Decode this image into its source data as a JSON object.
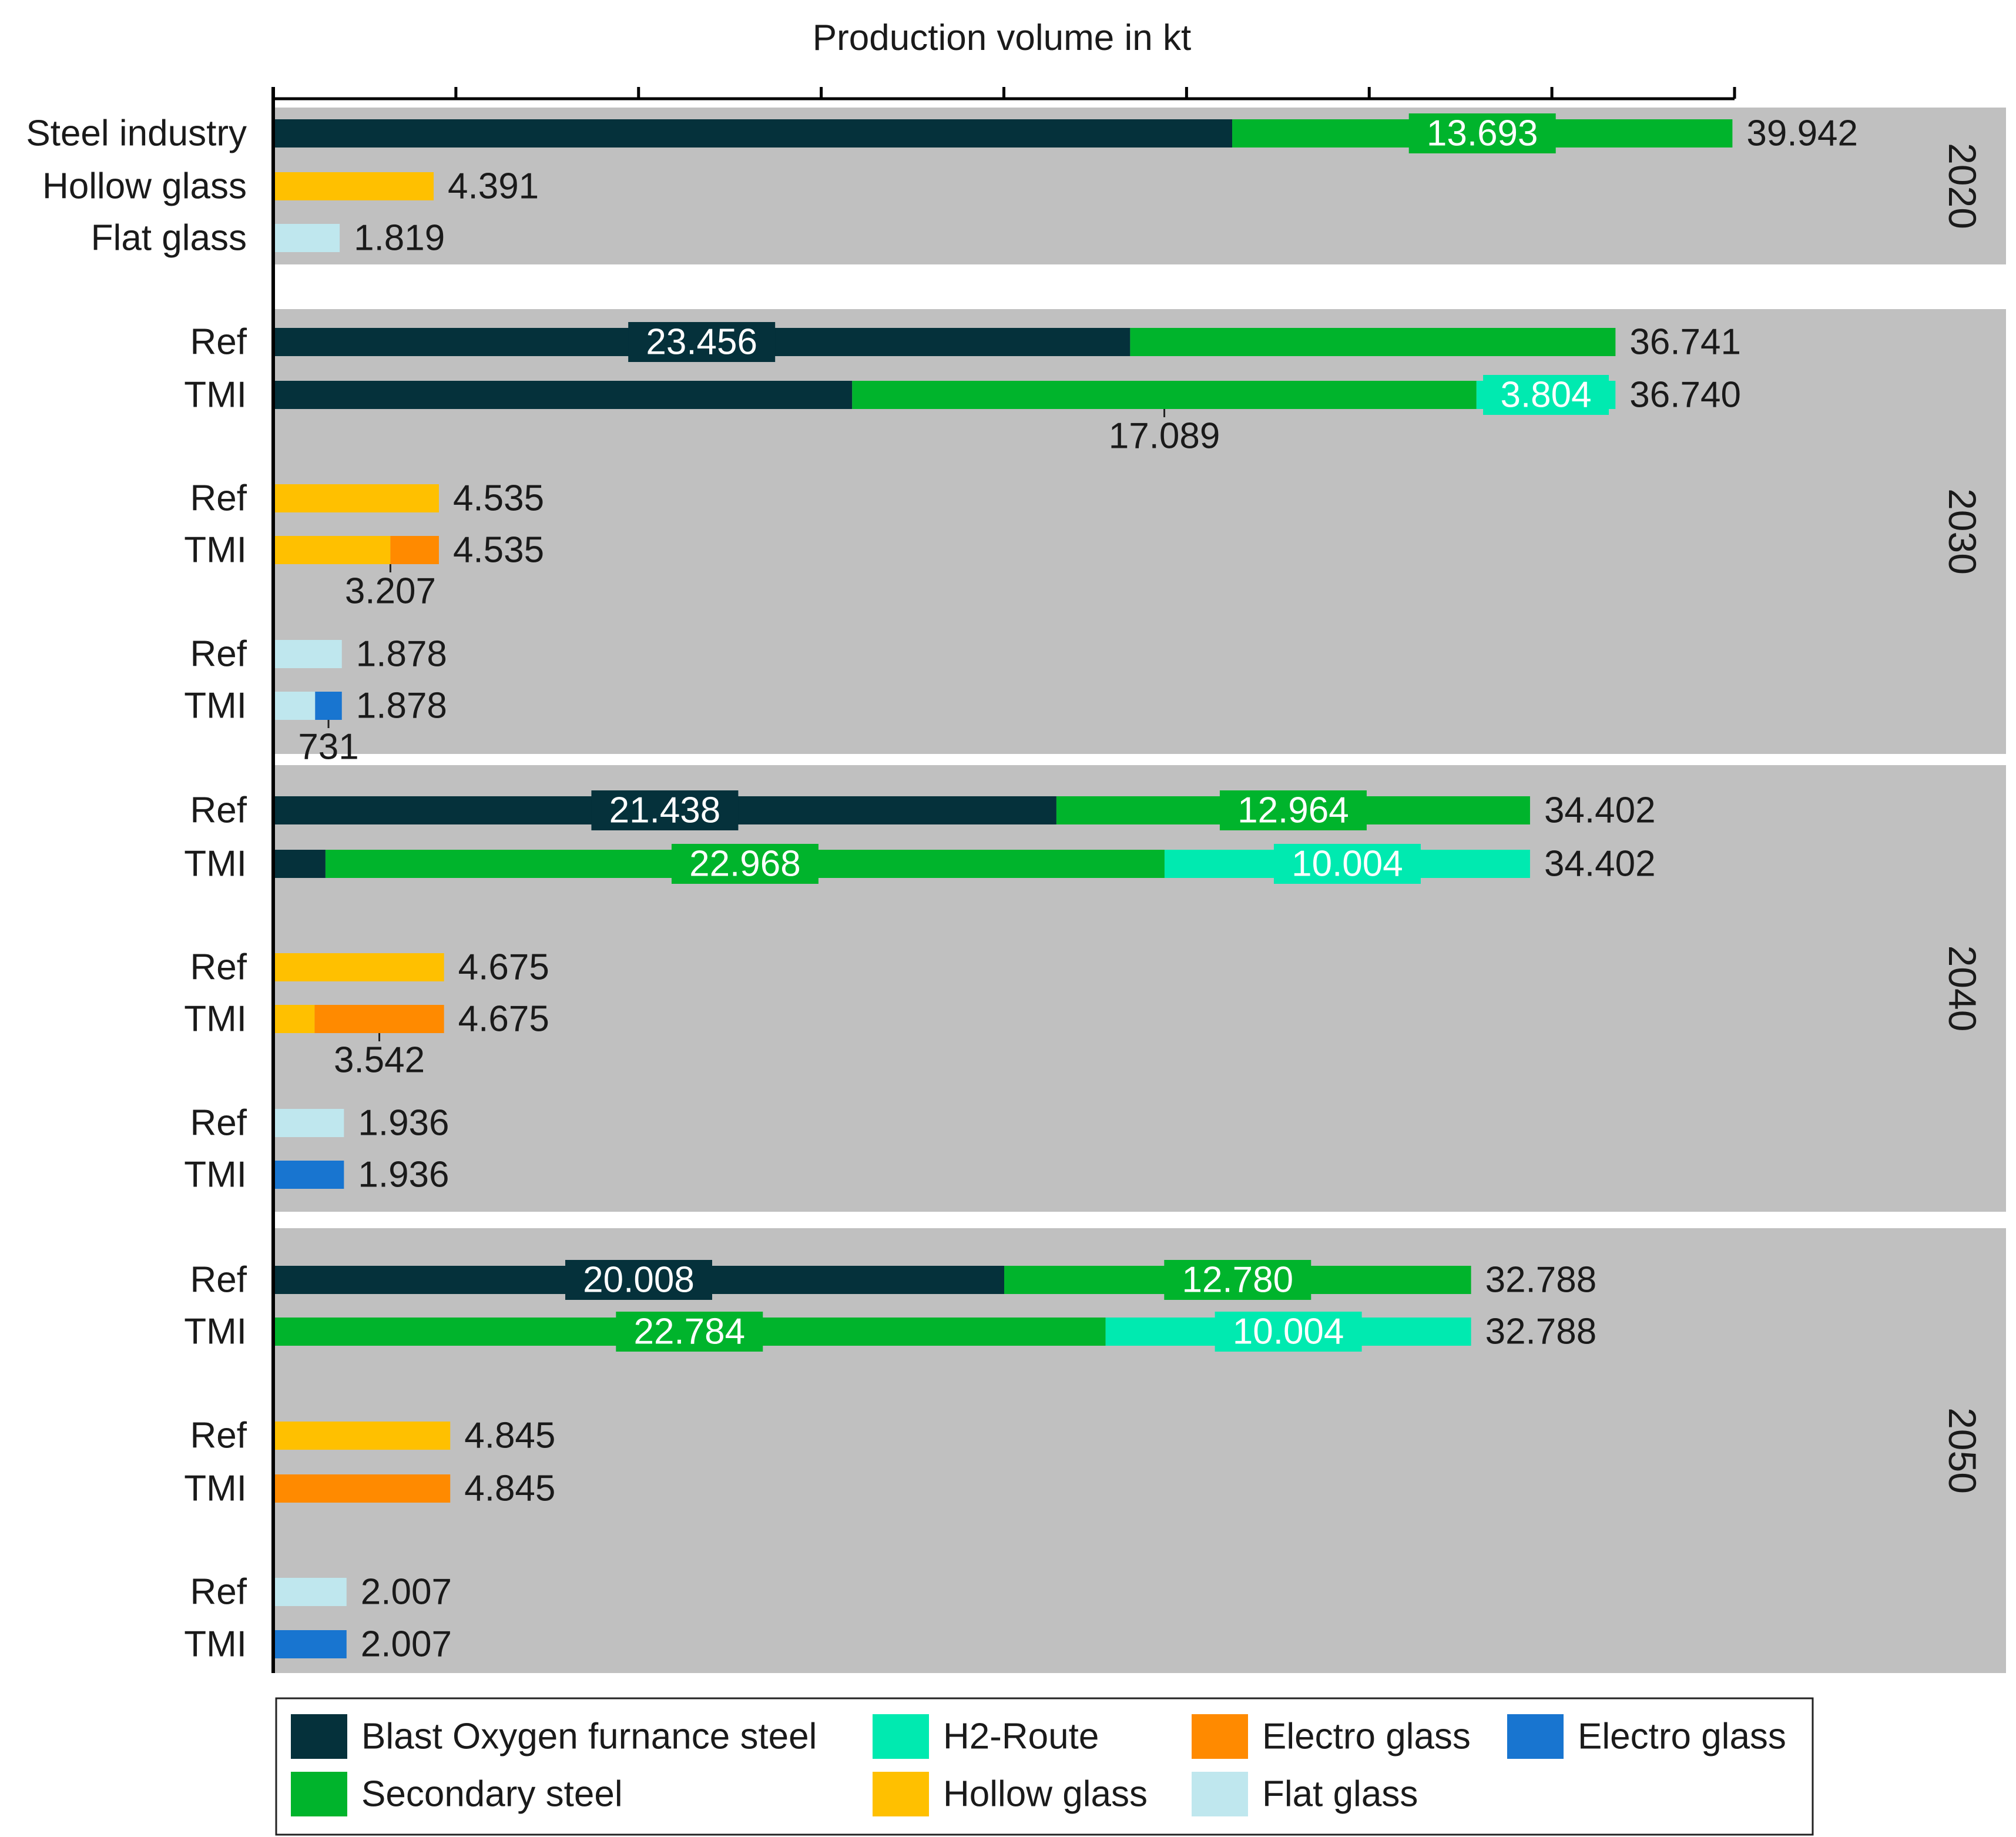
{
  "chart_data": {
    "type": "bar",
    "orientation": "horizontal",
    "stacked": true,
    "title": "Production volume in kt",
    "xlabel": "Production volume in kt",
    "xlim": [
      0,
      40000
    ],
    "x_tick_step": 5000,
    "x_tick_labels_shown": false,
    "colors": {
      "bof": "#05313b",
      "secondary": "#00b42c",
      "h2": "#00eab0",
      "electro_hollow": "#ff8a00",
      "hollow": "#ffc000",
      "flat": "#bfe7ee",
      "electro_flat": "#1875d0",
      "panel": "#c0c0c0",
      "text": "#1a1a1a",
      "axis": "#000000"
    },
    "groups": [
      {
        "year": "2020",
        "rows": [
          {
            "label": "Steel industry",
            "total": "39.942",
            "segments": [
              {
                "key": "bof",
                "value": 26249
              },
              {
                "key": "secondary",
                "value": 13693,
                "label": "13.693"
              }
            ]
          },
          {
            "label": "Hollow glass",
            "total": "4.391",
            "segments": [
              {
                "key": "hollow",
                "value": 4391
              }
            ]
          },
          {
            "label": "Flat glass",
            "total": "1.819",
            "segments": [
              {
                "key": "flat",
                "value": 1819
              }
            ]
          }
        ]
      },
      {
        "year": "2030",
        "rows": [
          {
            "label": "Ref",
            "total": "36.741",
            "segments": [
              {
                "key": "bof",
                "value": 23456,
                "label": "23.456"
              },
              {
                "key": "secondary",
                "value": 13285
              }
            ]
          },
          {
            "label": "TMI",
            "total": "36.740",
            "below_label": "17.089",
            "segments": [
              {
                "key": "bof",
                "value": 15847
              },
              {
                "key": "secondary",
                "value": 17089
              },
              {
                "key": "h2",
                "value": 3804,
                "label": "3.804"
              }
            ]
          },
          {
            "label": "Ref",
            "total": "4.535",
            "segments": [
              {
                "key": "hollow",
                "value": 4535
              }
            ]
          },
          {
            "label": "TMI",
            "total": "4.535",
            "below_label": "3.207",
            "segments": [
              {
                "key": "hollow",
                "value": 3207
              },
              {
                "key": "electro_hollow",
                "value": 1328
              }
            ]
          },
          {
            "label": "Ref",
            "total": "1.878",
            "segments": [
              {
                "key": "flat",
                "value": 1878
              }
            ]
          },
          {
            "label": "TMI",
            "total": "1.878",
            "below_label": "731",
            "segments": [
              {
                "key": "flat",
                "value": 1147
              },
              {
                "key": "electro_flat",
                "value": 731
              }
            ]
          }
        ]
      },
      {
        "year": "2040",
        "rows": [
          {
            "label": "Ref",
            "total": "34.402",
            "segments": [
              {
                "key": "bof",
                "value": 21438,
                "label": "21.438"
              },
              {
                "key": "secondary",
                "value": 12964,
                "label": "12.964"
              }
            ]
          },
          {
            "label": "TMI",
            "total": "34.402",
            "segments": [
              {
                "key": "bof",
                "value": 1430
              },
              {
                "key": "secondary",
                "value": 22968,
                "label": "22.968"
              },
              {
                "key": "h2",
                "value": 10004,
                "label": "10.004"
              }
            ]
          },
          {
            "label": "Ref",
            "total": "4.675",
            "segments": [
              {
                "key": "hollow",
                "value": 4675
              }
            ]
          },
          {
            "label": "TMI",
            "total": "4.675",
            "below_label": "3.542",
            "segments": [
              {
                "key": "hollow",
                "value": 1133
              },
              {
                "key": "electro_hollow",
                "value": 3542
              }
            ]
          },
          {
            "label": "Ref",
            "total": "1.936",
            "segments": [
              {
                "key": "flat",
                "value": 1936
              }
            ]
          },
          {
            "label": "TMI",
            "total": "1.936",
            "segments": [
              {
                "key": "electro_flat",
                "value": 1936
              }
            ]
          }
        ]
      },
      {
        "year": "2050",
        "rows": [
          {
            "label": "Ref",
            "total": "32.788",
            "segments": [
              {
                "key": "bof",
                "value": 20008,
                "label": "20.008"
              },
              {
                "key": "secondary",
                "value": 12780,
                "label": "12.780"
              }
            ]
          },
          {
            "label": "TMI",
            "total": "32.788",
            "segments": [
              {
                "key": "secondary",
                "value": 22784,
                "label": "22.784"
              },
              {
                "key": "h2",
                "value": 10004,
                "label": "10.004"
              }
            ]
          },
          {
            "label": "Ref",
            "total": "4.845",
            "segments": [
              {
                "key": "hollow",
                "value": 4845
              }
            ]
          },
          {
            "label": "TMI",
            "total": "4.845",
            "segments": [
              {
                "key": "electro_hollow",
                "value": 4845
              }
            ]
          },
          {
            "label": "Ref",
            "total": "2.007",
            "segments": [
              {
                "key": "flat",
                "value": 2007
              }
            ]
          },
          {
            "label": "TMI",
            "total": "2.007",
            "segments": [
              {
                "key": "electro_flat",
                "value": 2007
              }
            ]
          }
        ]
      }
    ],
    "legend": [
      {
        "key": "bof",
        "label": "Blast Oxygen furnance steel"
      },
      {
        "key": "h2",
        "label": "H2-Route"
      },
      {
        "key": "electro_hollow",
        "label": "Electro glass"
      },
      {
        "key": "electro_flat",
        "label": "Electro glass"
      },
      {
        "key": "secondary",
        "label": "Secondary steel"
      },
      {
        "key": "hollow",
        "label": "Hollow glass"
      },
      {
        "key": "flat",
        "label": "Flat glass"
      }
    ],
    "legend_position": "bottom"
  }
}
